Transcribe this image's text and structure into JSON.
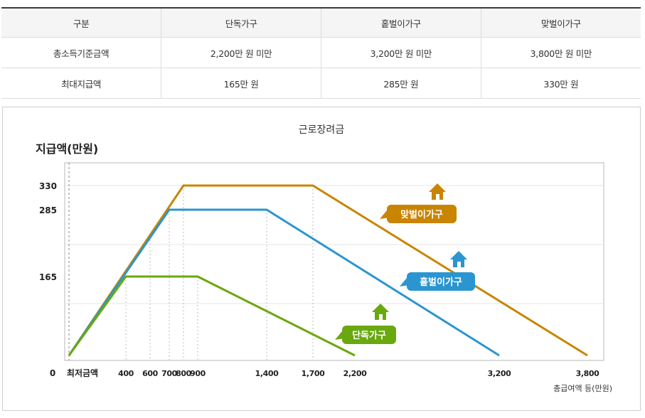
{
  "table": {
    "headers": [
      "구분",
      "단독가구",
      "홑벌이가구",
      "맞벌이가구"
    ],
    "rows": [
      {
        "label": "총소득기준금액",
        "values": [
          "2,200만 원 미만",
          "3,200만 원 미만",
          "3,800만 원 미만"
        ]
      },
      {
        "label": "최대지급액",
        "values": [
          "165만 원",
          "285만 원",
          "330만 원"
        ]
      }
    ]
  },
  "chart_data": {
    "type": "line",
    "title": "근로장려금",
    "ylabel": "지급액(만원)",
    "xlabel": "총급여액 등(만원)",
    "x_zero_label": "0",
    "x_min_label": "최저금액",
    "x_ticks": [
      {
        "value": 400,
        "label": "400"
      },
      {
        "value": 600,
        "label": "600"
      },
      {
        "value": 700,
        "label": "700"
      },
      {
        "value": 800,
        "label": "800"
      },
      {
        "value": 900,
        "label": "900"
      },
      {
        "value": 1400,
        "label": "1,400"
      },
      {
        "value": 1700,
        "label": "1,700"
      },
      {
        "value": 2200,
        "label": "2,200"
      },
      {
        "value": 3200,
        "label": "3,200"
      },
      {
        "value": 3800,
        "label": "3,800"
      }
    ],
    "y_ticks": [
      {
        "value": 165,
        "label": "165"
      },
      {
        "value": 285,
        "label": "285"
      },
      {
        "value": 330,
        "label": "330"
      }
    ],
    "grid": true,
    "series": [
      {
        "name": "맞벌이가구",
        "color": "#c98400",
        "points": [
          [
            0,
            0
          ],
          [
            800,
            330
          ],
          [
            1700,
            330
          ],
          [
            3800,
            0
          ]
        ]
      },
      {
        "name": "홑벌이가구",
        "color": "#2a95d0",
        "points": [
          [
            0,
            0
          ],
          [
            700,
            285
          ],
          [
            1400,
            285
          ],
          [
            3200,
            0
          ]
        ]
      },
      {
        "name": "단독가구",
        "color": "#6aa80f",
        "points": [
          [
            0,
            0
          ],
          [
            400,
            165
          ],
          [
            900,
            165
          ],
          [
            2200,
            0
          ]
        ]
      }
    ],
    "icon": "house-icon"
  }
}
